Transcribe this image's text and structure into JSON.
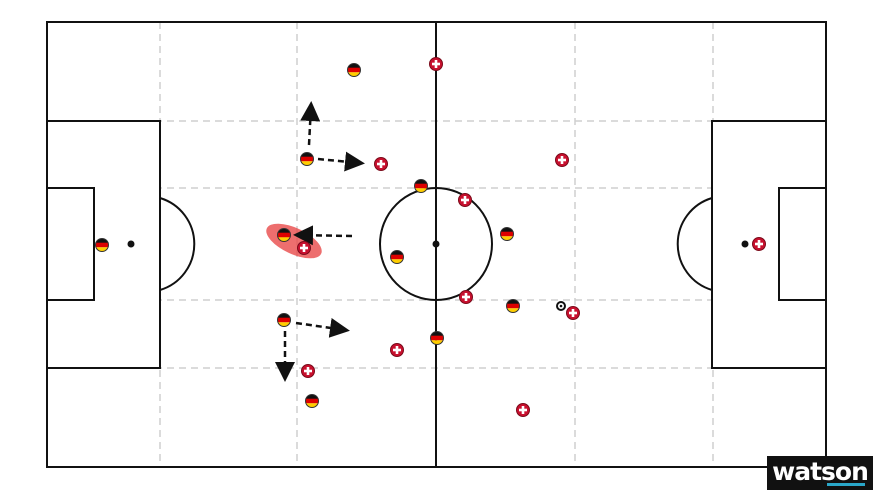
{
  "diagram": {
    "type": "football-tactics-board",
    "teams": [
      {
        "id": "germany",
        "icon": "germany-flag-icon",
        "colors": [
          "#111111",
          "#dd0000",
          "#ffce00"
        ]
      },
      {
        "id": "switzerland",
        "icon": "swiss-cross-icon",
        "colors": [
          "#c8102e",
          "#ffffff"
        ]
      }
    ],
    "pitch_line_color": "#111111",
    "grid_line_color": "#cccccc",
    "highlight_color": "#e84a4a"
  },
  "logo": {
    "text": "watson",
    "accent": "#2aa7c9"
  }
}
